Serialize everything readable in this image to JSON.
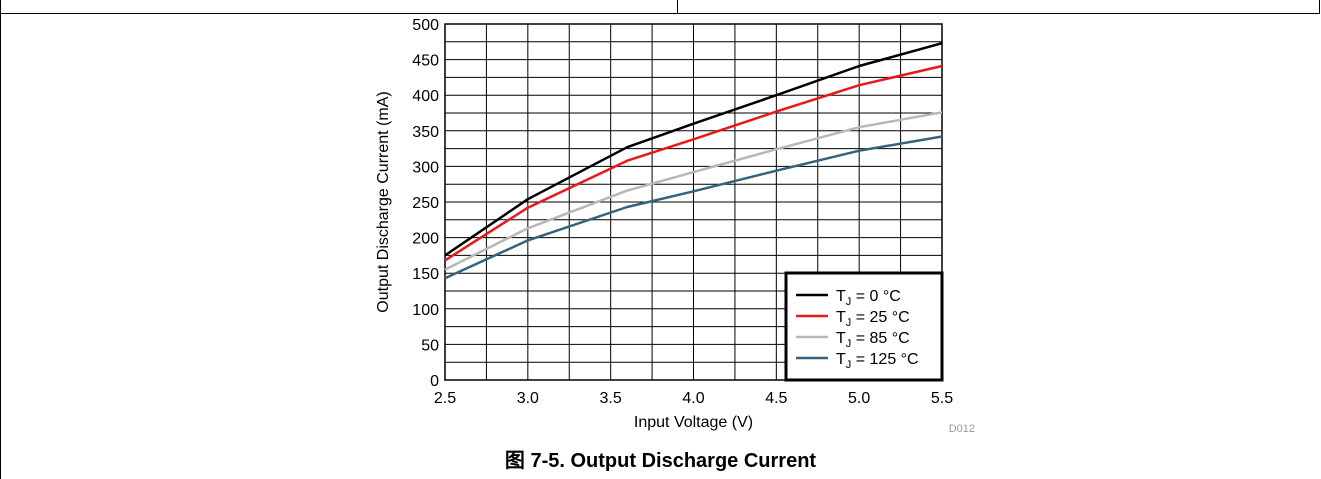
{
  "caption": "图 7-5. Output Discharge Current",
  "chart_data": {
    "type": "line",
    "xlabel": "Input Voltage (V)",
    "ylabel": "Output Discharge Current (mA)",
    "xlim": [
      2.5,
      5.5
    ],
    "ylim": [
      0,
      500
    ],
    "x_ticks": [
      "2.5",
      "3.0",
      "3.5",
      "4.0",
      "4.5",
      "5.0",
      "5.5"
    ],
    "y_ticks": [
      "0",
      "50",
      "100",
      "150",
      "200",
      "250",
      "300",
      "350",
      "400",
      "450",
      "500"
    ],
    "grid": true,
    "legend_position": "bottom-right",
    "figure_id": "D012",
    "series": [
      {
        "name": "T",
        "subscript": "J",
        "suffix": " = 0 °C",
        "color": "#000000",
        "points": [
          [
            2.5,
            175
          ],
          [
            3.0,
            254
          ],
          [
            3.6,
            327
          ],
          [
            4.0,
            360
          ],
          [
            4.5,
            400
          ],
          [
            5.0,
            441
          ],
          [
            5.5,
            473
          ]
        ]
      },
      {
        "name": "T",
        "subscript": "J",
        "suffix": " = 25 °C",
        "color": "#e8191b",
        "points": [
          [
            2.5,
            168
          ],
          [
            3.0,
            242
          ],
          [
            3.6,
            308
          ],
          [
            4.0,
            338
          ],
          [
            4.5,
            377
          ],
          [
            5.0,
            414
          ],
          [
            5.5,
            441
          ]
        ]
      },
      {
        "name": "T",
        "subscript": "J",
        "suffix": " = 85 °C",
        "color": "#b8b8b8",
        "points": [
          [
            2.5,
            155
          ],
          [
            3.0,
            213
          ],
          [
            3.6,
            266
          ],
          [
            4.0,
            292
          ],
          [
            4.5,
            324
          ],
          [
            5.0,
            355
          ],
          [
            5.5,
            376
          ]
        ]
      },
      {
        "name": "T",
        "subscript": "J",
        "suffix": " = 125 °C",
        "color": "#35627f",
        "points": [
          [
            2.5,
            143
          ],
          [
            3.0,
            196
          ],
          [
            3.6,
            243
          ],
          [
            4.0,
            265
          ],
          [
            4.5,
            294
          ],
          [
            5.0,
            322
          ],
          [
            5.5,
            342
          ]
        ]
      }
    ]
  }
}
